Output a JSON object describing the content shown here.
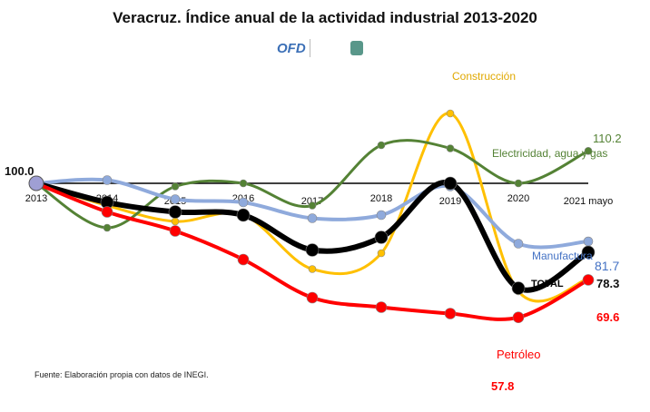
{
  "title": "Veracruz. Índice anual de la actividad industrial  2013-2020",
  "logo_text": "OFD",
  "source": "Fuente: Elaboración propia con datos de INEGI.",
  "chart_data": {
    "type": "line",
    "title": "Veracruz. Índice anual de la actividad industrial  2013-2020",
    "categories": [
      "2013",
      "2014",
      "2015",
      "2016",
      "2017",
      "2018",
      "2019",
      "2020",
      "2021 mayo"
    ],
    "baseline_value": 100,
    "baseline_label": "100.0",
    "ylim": [
      55,
      130
    ],
    "grid": false,
    "legend": "inline labels",
    "series": [
      {
        "name": "Construcción",
        "color": "#ffc000",
        "values": [
          100,
          93,
          88,
          90,
          73,
          78,
          122,
          66,
          70
        ],
        "end_label": ""
      },
      {
        "name": "Electricidad, agua y gas",
        "color": "#548235",
        "values": [
          100,
          86,
          99,
          100,
          93,
          112,
          111,
          100,
          110.2
        ],
        "end_label": "110.2"
      },
      {
        "name": "Manufactura",
        "color": "#8faadc",
        "values": [
          100,
          101,
          95,
          94,
          89,
          90,
          99,
          81,
          81.7
        ],
        "end_label": "81.7"
      },
      {
        "name": "TOTAL",
        "color": "#000000",
        "values": [
          100,
          94,
          91,
          90,
          79,
          83,
          100,
          67,
          78.3
        ],
        "end_label": "78.3"
      },
      {
        "name": "Petróleo",
        "color": "#ff0000",
        "values": [
          100,
          91,
          85,
          76,
          64,
          61,
          59,
          57.8,
          69.6
        ],
        "end_label": "69.6",
        "min_label": "57.8"
      }
    ],
    "colors": {
      "title": "#111111",
      "baseline": "#000000"
    }
  }
}
